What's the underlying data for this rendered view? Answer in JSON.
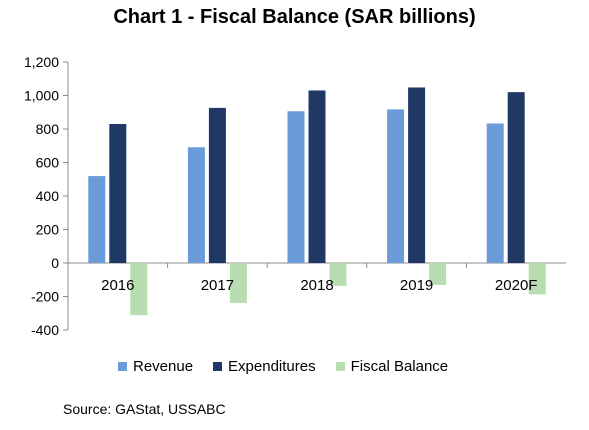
{
  "chart_data": {
    "type": "bar",
    "title": "Chart 1 - Fiscal Balance (SAR billions)",
    "xlabel": "",
    "ylabel": "",
    "categories": [
      "2016",
      "2017",
      "2018",
      "2019",
      "2020F"
    ],
    "series": [
      {
        "name": "Revenue",
        "color": "#6b9bd8",
        "values": [
          519,
          691,
          906,
          917,
          833
        ]
      },
      {
        "name": "Expenditures",
        "color": "#1f3864",
        "values": [
          830,
          926,
          1030,
          1048,
          1020
        ]
      },
      {
        "name": "Fiscal Balance",
        "color": "#b7ddb0",
        "values": [
          -311,
          -238,
          -136,
          -131,
          -187
        ]
      }
    ],
    "ylim": [
      -400,
      1200
    ],
    "yticks": [
      -400,
      -200,
      0,
      200,
      400,
      600,
      800,
      1000,
      1200
    ],
    "ytick_labels": [
      "-400",
      "-200",
      "0",
      "200",
      "400",
      "600",
      "800",
      "1,000",
      "1,200"
    ],
    "grid": false,
    "legend": "bottom"
  },
  "source": "Source: GAStat, USSABC"
}
